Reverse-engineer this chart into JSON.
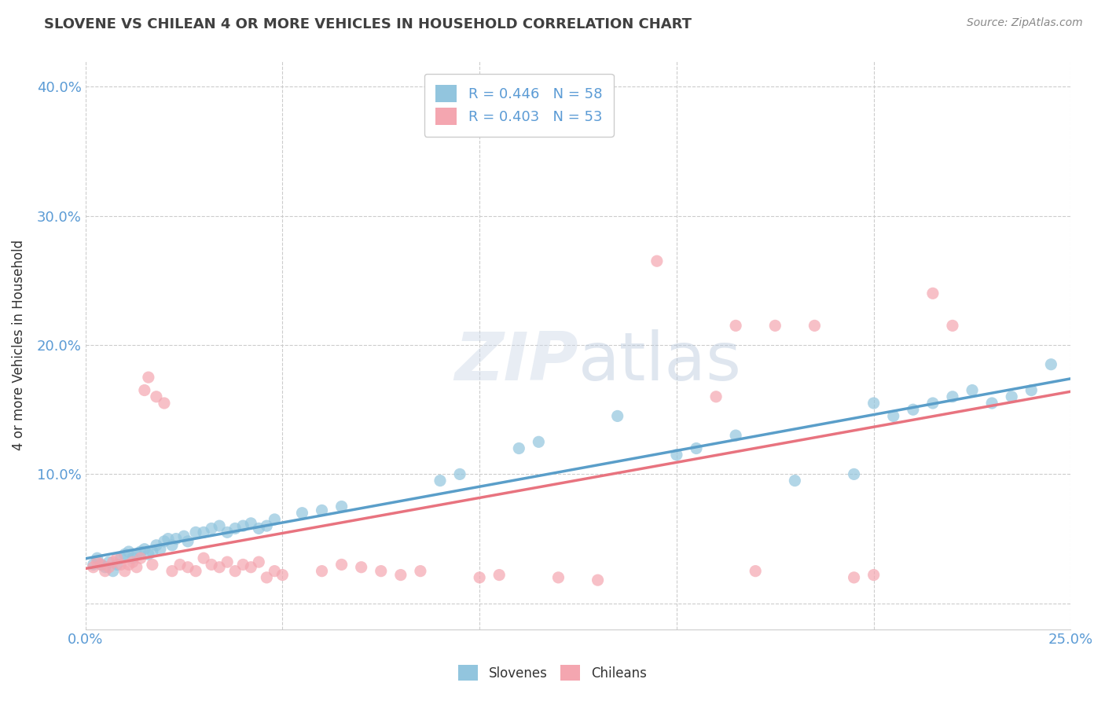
{
  "title": "SLOVENE VS CHILEAN 4 OR MORE VEHICLES IN HOUSEHOLD CORRELATION CHART",
  "source": "Source: ZipAtlas.com",
  "ylabel": "4 or more Vehicles in Household",
  "xlim": [
    0.0,
    0.25
  ],
  "ylim": [
    -0.02,
    0.42
  ],
  "xticks": [
    0.0,
    0.05,
    0.1,
    0.15,
    0.2,
    0.25
  ],
  "xtick_labels": [
    "0.0%",
    "",
    "",
    "",
    "",
    "25.0%"
  ],
  "yticks": [
    0.0,
    0.1,
    0.2,
    0.3,
    0.4
  ],
  "ytick_labels": [
    "",
    "10.0%",
    "20.0%",
    "30.0%",
    "40.0%"
  ],
  "slovene_color": "#92c5de",
  "chilean_color": "#f4a6b0",
  "slovene_line_color": "#5a9ec9",
  "chilean_line_color": "#e8737f",
  "R_slovene": 0.446,
  "N_slovene": 58,
  "R_chilean": 0.403,
  "N_chilean": 53,
  "background_color": "#ffffff",
  "grid_color": "#cccccc",
  "watermark": "ZIPatlas",
  "slovene_x": [
    0.002,
    0.003,
    0.004,
    0.005,
    0.006,
    0.007,
    0.008,
    0.009,
    0.01,
    0.011,
    0.012,
    0.013,
    0.014,
    0.015,
    0.016,
    0.017,
    0.018,
    0.019,
    0.02,
    0.021,
    0.022,
    0.023,
    0.025,
    0.026,
    0.028,
    0.03,
    0.032,
    0.034,
    0.036,
    0.038,
    0.04,
    0.042,
    0.044,
    0.046,
    0.048,
    0.055,
    0.06,
    0.065,
    0.09,
    0.095,
    0.11,
    0.115,
    0.135,
    0.15,
    0.155,
    0.165,
    0.18,
    0.195,
    0.2,
    0.205,
    0.21,
    0.215,
    0.22,
    0.225,
    0.23,
    0.235,
    0.24,
    0.245
  ],
  "slovene_y": [
    0.03,
    0.035,
    0.03,
    0.028,
    0.032,
    0.025,
    0.03,
    0.035,
    0.038,
    0.04,
    0.035,
    0.038,
    0.04,
    0.042,
    0.038,
    0.04,
    0.045,
    0.042,
    0.048,
    0.05,
    0.045,
    0.05,
    0.052,
    0.048,
    0.055,
    0.055,
    0.058,
    0.06,
    0.055,
    0.058,
    0.06,
    0.062,
    0.058,
    0.06,
    0.065,
    0.07,
    0.072,
    0.075,
    0.095,
    0.1,
    0.12,
    0.125,
    0.145,
    0.115,
    0.12,
    0.13,
    0.095,
    0.1,
    0.155,
    0.145,
    0.15,
    0.155,
    0.16,
    0.165,
    0.155,
    0.16,
    0.165,
    0.185
  ],
  "chilean_x": [
    0.002,
    0.003,
    0.004,
    0.005,
    0.006,
    0.007,
    0.008,
    0.009,
    0.01,
    0.011,
    0.012,
    0.013,
    0.014,
    0.015,
    0.016,
    0.017,
    0.018,
    0.02,
    0.022,
    0.024,
    0.026,
    0.028,
    0.03,
    0.032,
    0.034,
    0.036,
    0.038,
    0.04,
    0.042,
    0.044,
    0.046,
    0.048,
    0.05,
    0.06,
    0.065,
    0.07,
    0.075,
    0.08,
    0.085,
    0.1,
    0.105,
    0.12,
    0.13,
    0.145,
    0.16,
    0.165,
    0.17,
    0.175,
    0.185,
    0.195,
    0.2,
    0.215,
    0.22
  ],
  "chilean_y": [
    0.028,
    0.032,
    0.03,
    0.025,
    0.028,
    0.032,
    0.035,
    0.03,
    0.025,
    0.03,
    0.032,
    0.028,
    0.035,
    0.165,
    0.175,
    0.03,
    0.16,
    0.155,
    0.025,
    0.03,
    0.028,
    0.025,
    0.035,
    0.03,
    0.028,
    0.032,
    0.025,
    0.03,
    0.028,
    0.032,
    0.02,
    0.025,
    0.022,
    0.025,
    0.03,
    0.028,
    0.025,
    0.022,
    0.025,
    0.02,
    0.022,
    0.02,
    0.018,
    0.265,
    0.16,
    0.215,
    0.025,
    0.215,
    0.215,
    0.02,
    0.022,
    0.24,
    0.215
  ]
}
